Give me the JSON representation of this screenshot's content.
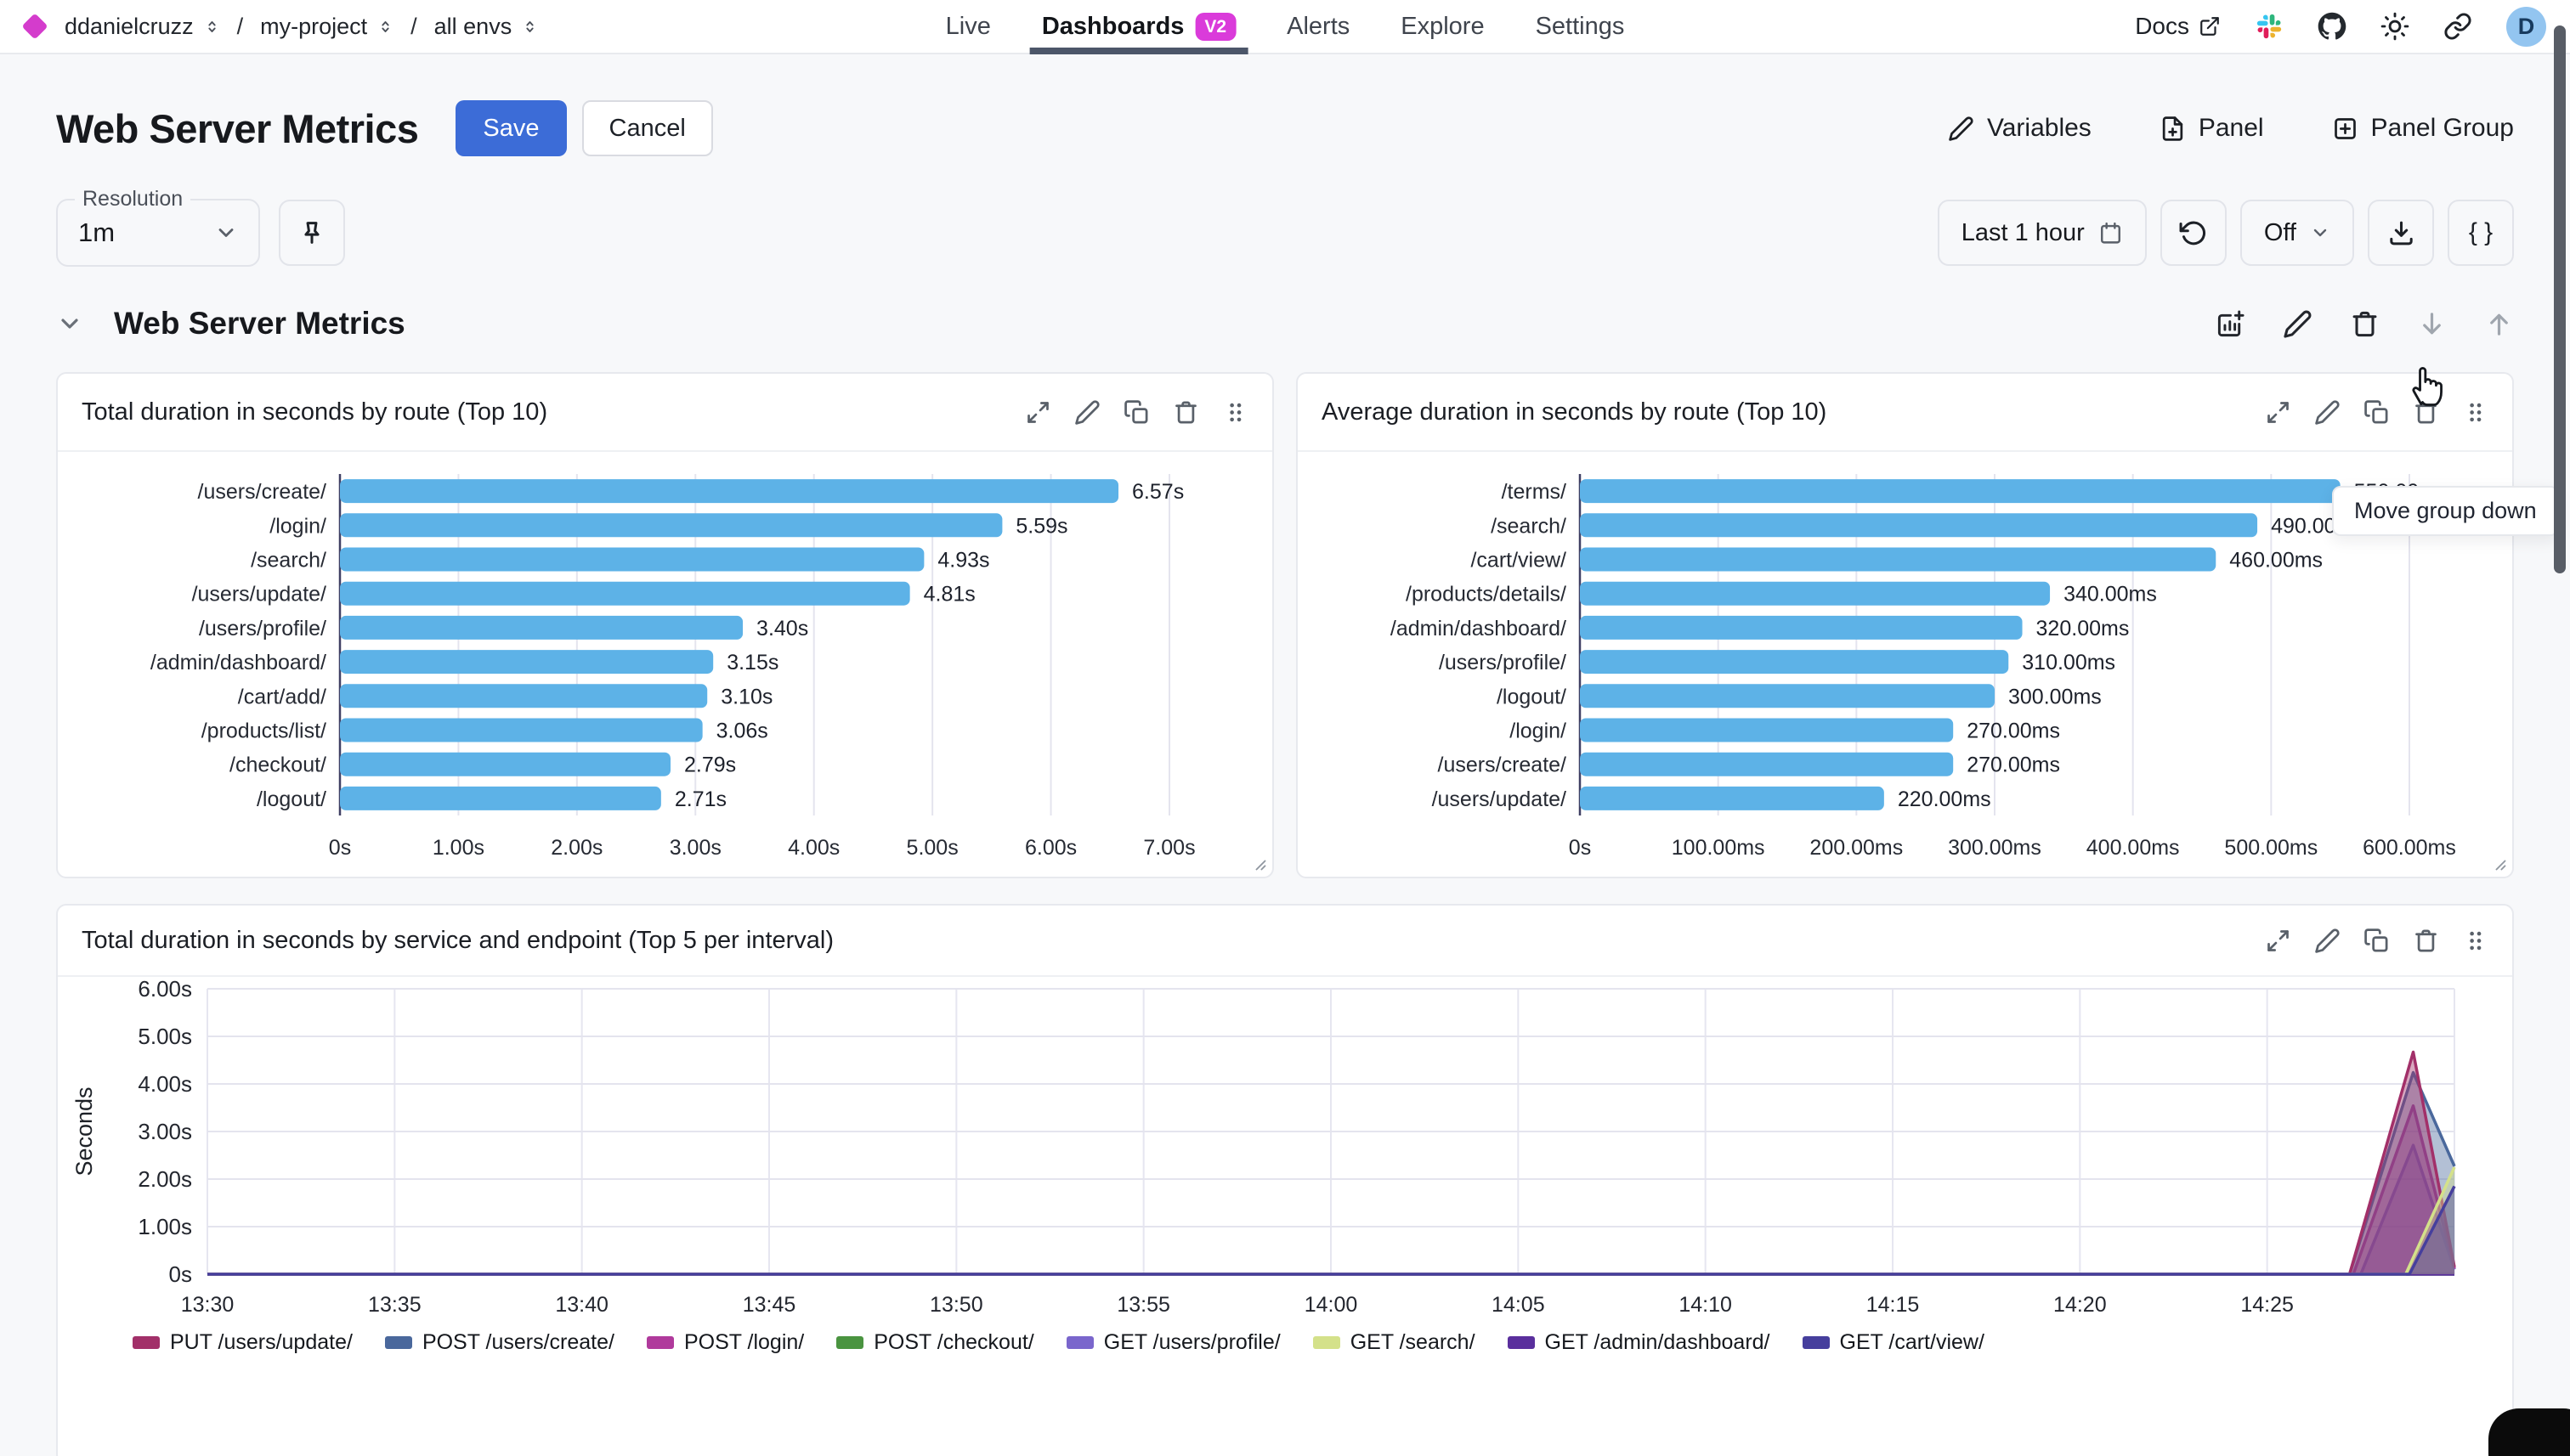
{
  "nav": {
    "breadcrumb": {
      "org": "ddanielcruzz",
      "project": "my-project",
      "env": "all envs"
    },
    "tabs": [
      {
        "label": "Live"
      },
      {
        "label": "Dashboards",
        "badge": "V2"
      },
      {
        "label": "Alerts"
      },
      {
        "label": "Explore"
      },
      {
        "label": "Settings"
      }
    ],
    "docs": "Docs",
    "avatar_initial": "D"
  },
  "header": {
    "title": "Web Server Metrics",
    "save": "Save",
    "cancel": "Cancel",
    "variables": "Variables",
    "panel": "Panel",
    "panel_group": "Panel Group"
  },
  "toolbar": {
    "resolution_label": "Resolution",
    "resolution_value": "1m",
    "time_range": "Last 1 hour",
    "auto_refresh": "Off",
    "code_button": "{ }",
    "tooltip": "Move group down"
  },
  "group": {
    "title": "Web Server Metrics"
  },
  "colors": {
    "accent_blue": "#3c6cd7",
    "bar_blue": "#5db2e7",
    "badge_magenta": "#da3bda"
  },
  "panels": [
    {
      "title": "Total duration in seconds by route (Top 10)",
      "chart_data": {
        "type": "bar",
        "orientation": "horizontal",
        "bar_color": "#5db2e7",
        "categories": [
          "/users/create/",
          "/login/",
          "/search/",
          "/users/update/",
          "/users/profile/",
          "/admin/dashboard/",
          "/cart/add/",
          "/products/list/",
          "/checkout/",
          "/logout/"
        ],
        "values": [
          6.57,
          5.59,
          4.93,
          4.81,
          3.4,
          3.15,
          3.1,
          3.06,
          2.79,
          2.71
        ],
        "value_labels": [
          "6.57s",
          "5.59s",
          "4.93s",
          "4.81s",
          "3.40s",
          "3.15s",
          "3.10s",
          "3.06s",
          "2.79s",
          "2.71s"
        ],
        "xtick_labels": [
          "0s",
          "1.00s",
          "2.00s",
          "3.00s",
          "4.00s",
          "5.00s",
          "6.00s",
          "7.00s"
        ],
        "xmax": 7
      }
    },
    {
      "title": "Average duration in seconds by route (Top 10)",
      "chart_data": {
        "type": "bar",
        "orientation": "horizontal",
        "bar_color": "#5db2e7",
        "categories": [
          "/terms/",
          "/search/",
          "/cart/view/",
          "/products/details/",
          "/admin/dashboard/",
          "/users/profile/",
          "/logout/",
          "/login/",
          "/users/create/",
          "/users/update/"
        ],
        "values": [
          550,
          490,
          460,
          340,
          320,
          310,
          300,
          270,
          270,
          220
        ],
        "value_labels": [
          "550.00ms",
          "490.00ms",
          "460.00ms",
          "340.00ms",
          "320.00ms",
          "310.00ms",
          "300.00ms",
          "270.00ms",
          "270.00ms",
          "220.00ms"
        ],
        "xtick_labels": [
          "0s",
          "100.00ms",
          "200.00ms",
          "300.00ms",
          "400.00ms",
          "500.00ms",
          "600.00ms"
        ],
        "xmax": 600
      }
    }
  ],
  "bottom_panel": {
    "title": "Total duration in seconds by service and endpoint (Top 5 per interval)",
    "chart_data": {
      "type": "area",
      "ylabel": "Seconds",
      "yticks": [
        {
          "v": 6,
          "label": "6.00s"
        },
        {
          "v": 5,
          "label": "5.00s"
        },
        {
          "v": 4,
          "label": "4.00s"
        },
        {
          "v": 3,
          "label": "3.00s"
        },
        {
          "v": 2,
          "label": "2.00s"
        },
        {
          "v": 1,
          "label": "1.00s"
        },
        {
          "v": 0,
          "label": "0s"
        }
      ],
      "ymax": 6,
      "x_domain_minutes": [
        0,
        60
      ],
      "xtick_labels": [
        "13:30",
        "13:35",
        "13:40",
        "13:45",
        "13:50",
        "13:55",
        "14:00",
        "14:05",
        "14:10",
        "14:15",
        "14:20",
        "14:25"
      ],
      "xtick_minutes": [
        0,
        5,
        10,
        15,
        20,
        25,
        30,
        35,
        40,
        45,
        50,
        55
      ],
      "series": [
        {
          "name": "PUT /users/update/",
          "color": "#a23069",
          "points": [
            [
              0,
              0
            ],
            [
              57.2,
              0
            ],
            [
              58.9,
              4.67
            ],
            [
              60,
              0.15
            ]
          ]
        },
        {
          "name": "POST /users/create/",
          "color": "#4a689c",
          "points": [
            [
              0,
              0
            ],
            [
              57.2,
              0
            ],
            [
              58.9,
              4.24
            ],
            [
              60,
              2.27
            ]
          ]
        },
        {
          "name": "POST /login/",
          "color": "#b03a9c",
          "points": [
            [
              0,
              0
            ],
            [
              57.3,
              0
            ],
            [
              58.9,
              3.54
            ],
            [
              60,
              0.12
            ]
          ]
        },
        {
          "name": "POST /checkout/",
          "color": "#4a9440",
          "points": [
            [
              0,
              0
            ],
            [
              60,
              0
            ]
          ]
        },
        {
          "name": "GET /users/profile/",
          "color": "#7a66cc",
          "points": [
            [
              0,
              0
            ],
            [
              57.5,
              0
            ],
            [
              58.9,
              2.71
            ],
            [
              60,
              0.1
            ]
          ]
        },
        {
          "name": "GET /search/",
          "color": "#d4e18a",
          "points": [
            [
              0,
              0
            ],
            [
              58.7,
              0
            ],
            [
              60,
              2.25
            ]
          ]
        },
        {
          "name": "GET /admin/dashboard/",
          "color": "#5a2f9d",
          "points": [
            [
              0,
              0
            ],
            [
              60,
              0
            ]
          ]
        },
        {
          "name": "GET /cart/view/",
          "color": "#463f9d",
          "points": [
            [
              0,
              0
            ],
            [
              58.8,
              0
            ],
            [
              60,
              1.85
            ]
          ]
        }
      ],
      "draw_order": [
        3,
        6,
        4,
        2,
        1,
        0,
        5,
        7
      ]
    }
  }
}
